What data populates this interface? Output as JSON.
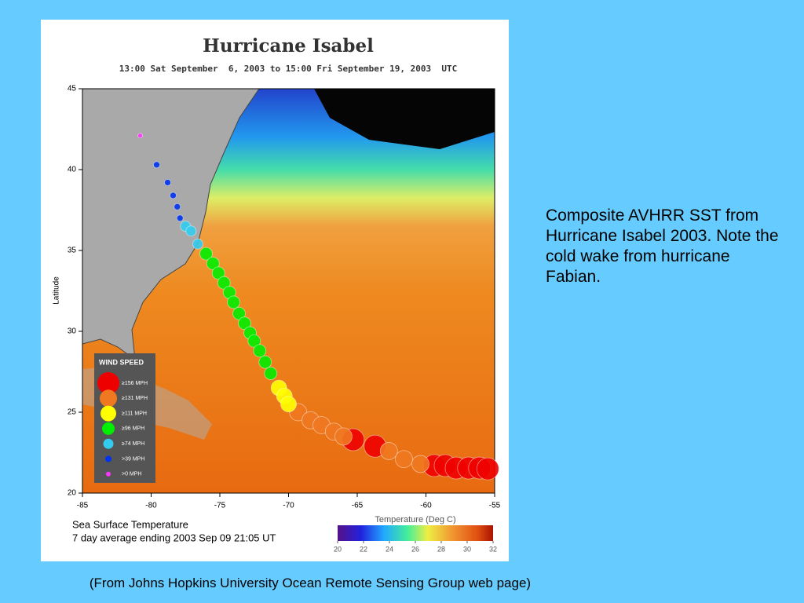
{
  "map": {
    "title": "Hurricane Isabel",
    "subtitle": "13:00 Sat September  6, 2003 to 15:00 Fri September 19, 2003  UTC",
    "ylabel": "Latitude",
    "xlim": [
      -85,
      -55
    ],
    "ylim": [
      20,
      45
    ],
    "xticks": [
      -85,
      -80,
      -75,
      -70,
      -65,
      -60,
      -55
    ],
    "yticks": [
      20,
      25,
      30,
      35,
      40,
      45
    ],
    "legend_title": "WIND SPEED",
    "series": [
      {
        "name": "≥156 MPH",
        "color": "#ee0000",
        "lon": [
          -65.3,
          -63.7,
          -59.4,
          -58.6,
          -57.8,
          -56.9,
          -56.1,
          -55.5
        ],
        "lat": [
          23.3,
          22.9,
          21.7,
          21.7,
          21.55,
          21.55,
          21.55,
          21.5
        ]
      },
      {
        "name": "≥131 MPH",
        "color": "#f07820",
        "lon": [
          -69.3,
          -68.4,
          -67.6,
          -66.7,
          -66.0,
          -62.7,
          -61.6,
          -60.4
        ],
        "lat": [
          25.0,
          24.5,
          24.2,
          23.8,
          23.5,
          22.6,
          22.1,
          21.8
        ]
      },
      {
        "name": "≥111 MPH",
        "color": "#ffff00",
        "lon": [
          -70.7,
          -70.3,
          -70.0
        ],
        "lat": [
          26.5,
          26.0,
          25.5
        ]
      },
      {
        "name": "≥96 MPH",
        "color": "#00ee00",
        "lon": [
          -76.0,
          -75.5,
          -75.1,
          -74.7,
          -74.3,
          -74.0,
          -73.6,
          -73.2,
          -72.8,
          -72.5,
          -72.1,
          -71.7,
          -71.3
        ],
        "lat": [
          34.8,
          34.2,
          33.6,
          33.0,
          32.4,
          31.8,
          31.1,
          30.5,
          29.9,
          29.4,
          28.8,
          28.1,
          27.4
        ]
      },
      {
        "name": "≥74 MPH",
        "color": "#33ccee",
        "lon": [
          -77.5,
          -77.1,
          -76.6
        ],
        "lat": [
          36.5,
          36.2,
          35.4
        ]
      },
      {
        "name": ">39 MPH",
        "color": "#0033ee",
        "lon": [
          -79.6,
          -78.8,
          -78.4,
          -78.1,
          -77.9
        ],
        "lat": [
          40.3,
          39.2,
          38.4,
          37.7,
          37.0
        ]
      },
      {
        "name": ">0 MPH",
        "color": "#ff33ff",
        "lon": [
          -80.8
        ],
        "lat": [
          42.1
        ]
      }
    ],
    "footer_lines": [
      "Sea Surface Temperature",
      "7 day average ending 2003 Sep 09 21:05 UT"
    ],
    "colorbar": {
      "label": "Temperature (Deg C)",
      "lim": [
        20,
        32
      ],
      "ticks": [
        20,
        22,
        24,
        26,
        28,
        30,
        32
      ]
    }
  },
  "caption": "Composite AVHRR SST from Hurricane Isabel 2003. Note the cold wake from hurricane Fabian.",
  "source": "(From Johns Hopkins University Ocean Remote Sensing Group web page)"
}
